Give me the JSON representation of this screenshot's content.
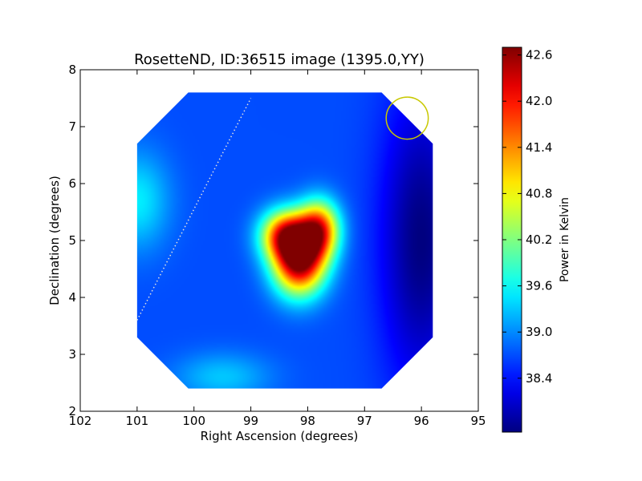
{
  "chart_data": {
    "type": "heatmap",
    "title": "RosetteND, ID:36515 image (1395.0,YY)",
    "xlabel": "Right Ascension (degrees)",
    "ylabel": "Declination (degrees)",
    "xlim": [
      102,
      95
    ],
    "ylim": [
      2,
      8
    ],
    "x_ticks": [
      "102",
      "101",
      "100",
      "99",
      "98",
      "97",
      "96",
      "95"
    ],
    "y_ticks": [
      "2",
      "3",
      "4",
      "5",
      "6",
      "7",
      "8"
    ],
    "colorbar": {
      "label": "Power in Kelvin",
      "range": [
        37.7,
        42.7
      ],
      "ticks": [
        "38.4",
        "39.0",
        "39.6",
        "40.2",
        "40.8",
        "41.4",
        "42.0",
        "42.6"
      ],
      "colormap": "jet"
    },
    "map_region": {
      "ra_range": [
        101.0,
        95.8
      ],
      "dec_range": [
        2.4,
        7.6
      ],
      "corner_cut_deg": 0.9
    },
    "background_level": 38.7,
    "features": [
      {
        "ra": 98.15,
        "dec": 4.65,
        "peak": 42.7,
        "sigma_ra": 0.32,
        "sigma_dec": 0.42
      },
      {
        "ra": 97.8,
        "dec": 5.2,
        "peak": 41.6,
        "sigma_ra": 0.25,
        "sigma_dec": 0.35
      },
      {
        "ra": 98.4,
        "dec": 5.1,
        "peak": 41.4,
        "sigma_ra": 0.3,
        "sigma_dec": 0.3
      },
      {
        "ra": 101.0,
        "dec": 5.7,
        "peak": 39.5,
        "sigma_ra": 0.4,
        "sigma_dec": 0.6
      },
      {
        "ra": 99.5,
        "dec": 2.6,
        "peak": 39.3,
        "sigma_ra": 0.6,
        "sigma_dec": 0.3
      },
      {
        "ra": 96.0,
        "dec": 5.0,
        "peak": 37.7,
        "sigma_ra": 0.5,
        "sigma_dec": 1.8
      }
    ],
    "beam_circle": {
      "ra": 96.25,
      "dec": 7.15,
      "radius_deg": 0.37,
      "color": "#c8c800"
    },
    "dotted_line": {
      "points": [
        [
          101.0,
          3.6
        ],
        [
          99.0,
          7.5
        ]
      ],
      "color": "#e0e0e0"
    }
  }
}
